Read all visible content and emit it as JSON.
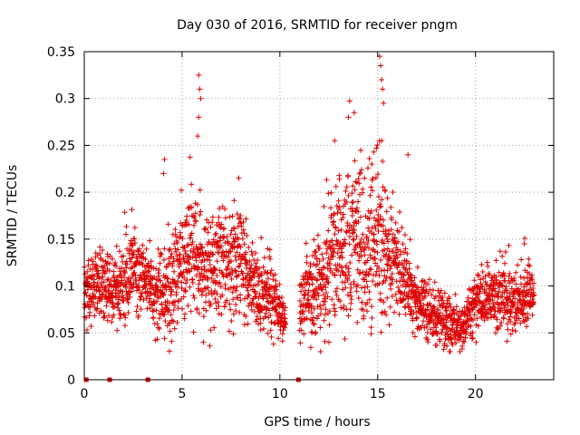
{
  "chart_data": {
    "type": "scatter",
    "title": "Day 030 of 2016, SRMTID for receiver pngm",
    "xlabel": "GPS time / hours",
    "ylabel": "SRMTID / TECUs",
    "xlim": [
      0,
      24
    ],
    "ylim": [
      0,
      0.35
    ],
    "x_ticks": [
      {
        "value": 0,
        "label": "0"
      },
      {
        "value": 5,
        "label": "5"
      },
      {
        "value": 10,
        "label": "10"
      },
      {
        "value": 15,
        "label": "15"
      },
      {
        "value": 20,
        "label": "20"
      }
    ],
    "y_ticks": [
      {
        "value": 0,
        "label": "0"
      },
      {
        "value": 0.05,
        "label": "0.05"
      },
      {
        "value": 0.1,
        "label": "0.1"
      },
      {
        "value": 0.15,
        "label": "0.15"
      },
      {
        "value": 0.2,
        "label": "0.2"
      },
      {
        "value": 0.25,
        "label": "0.25"
      },
      {
        "value": 0.3,
        "label": "0.3"
      },
      {
        "value": 0.35,
        "label": "0.35"
      }
    ],
    "grid": true,
    "marker": "+",
    "color": "#dd0000",
    "profile": {
      "x": [
        0.0,
        0.5,
        1.0,
        1.5,
        2.0,
        2.5,
        3.0,
        3.5,
        4.0,
        4.5,
        5.0,
        5.5,
        6.0,
        6.5,
        7.0,
        7.5,
        8.0,
        8.5,
        9.0,
        9.5,
        10.0,
        10.3,
        10.8,
        11.0,
        11.5,
        12.0,
        12.5,
        13.0,
        13.5,
        14.0,
        14.5,
        15.0,
        15.5,
        16.0,
        16.5,
        17.0,
        17.5,
        18.0,
        18.5,
        19.0,
        19.5,
        20.0,
        20.5,
        21.0,
        21.5,
        22.0,
        22.5,
        23.0
      ],
      "y": [
        0.085,
        0.1,
        0.1,
        0.09,
        0.1,
        0.12,
        0.11,
        0.095,
        0.085,
        0.1,
        0.13,
        0.14,
        0.12,
        0.12,
        0.13,
        0.12,
        0.12,
        0.11,
        0.095,
        0.085,
        0.075,
        0.06,
        null,
        0.075,
        0.09,
        0.1,
        0.12,
        0.14,
        0.14,
        0.15,
        0.14,
        0.15,
        0.13,
        0.12,
        0.1,
        0.085,
        0.075,
        0.065,
        0.06,
        0.055,
        0.06,
        0.08,
        0.085,
        0.085,
        0.09,
        0.085,
        0.09,
        0.09
      ],
      "spread": [
        0.02,
        0.025,
        0.025,
        0.025,
        0.03,
        0.03,
        0.025,
        0.02,
        0.03,
        0.035,
        0.04,
        0.04,
        0.045,
        0.04,
        0.04,
        0.04,
        0.04,
        0.03,
        0.03,
        0.025,
        0.02,
        0.015,
        null,
        0.02,
        0.03,
        0.04,
        0.05,
        0.05,
        0.055,
        0.06,
        0.06,
        0.06,
        0.045,
        0.04,
        0.03,
        0.025,
        0.02,
        0.02,
        0.02,
        0.015,
        0.02,
        0.02,
        0.02,
        0.02,
        0.025,
        0.025,
        0.025,
        0.02
      ],
      "points_per_hour": 120
    },
    "peaks": [
      {
        "x": 5.85,
        "y": 0.325
      },
      {
        "x": 5.9,
        "y": 0.31
      },
      {
        "x": 5.95,
        "y": 0.3
      },
      {
        "x": 5.85,
        "y": 0.28
      },
      {
        "x": 4.1,
        "y": 0.235
      },
      {
        "x": 4.05,
        "y": 0.22
      },
      {
        "x": 5.8,
        "y": 0.26
      },
      {
        "x": 7.9,
        "y": 0.215
      },
      {
        "x": 13.5,
        "y": 0.28
      },
      {
        "x": 13.8,
        "y": 0.285
      },
      {
        "x": 12.8,
        "y": 0.255
      },
      {
        "x": 14.7,
        "y": 0.23
      },
      {
        "x": 15.1,
        "y": 0.345
      },
      {
        "x": 15.15,
        "y": 0.335
      },
      {
        "x": 15.2,
        "y": 0.32
      },
      {
        "x": 15.25,
        "y": 0.31
      },
      {
        "x": 15.3,
        "y": 0.295
      },
      {
        "x": 15.2,
        "y": 0.255
      },
      {
        "x": 16.55,
        "y": 0.24
      },
      {
        "x": 22.5,
        "y": 0.145
      }
    ],
    "zero_markers": [
      0.1,
      1.3,
      3.25,
      10.95
    ]
  }
}
